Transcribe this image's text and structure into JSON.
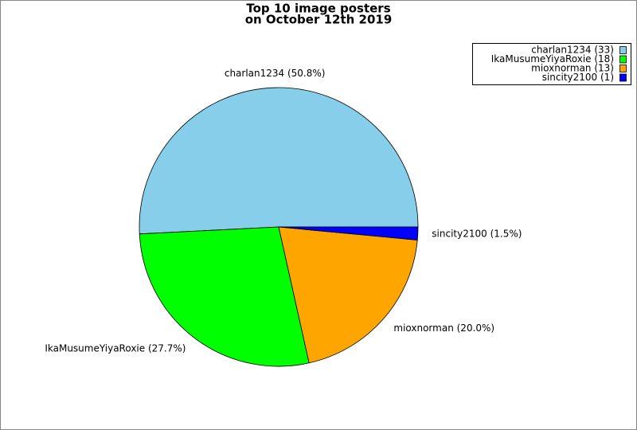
{
  "chart_data": {
    "type": "pie",
    "title": [
      "Top 10 image posters",
      "on October 12th 2019"
    ],
    "categories": [
      "charlan1234",
      "IkaMusumeYiyaRoxie",
      "mioxnorman",
      "sincity2100"
    ],
    "values": [
      50.8,
      27.7,
      20.0,
      1.5
    ],
    "value_labels": [
      "charlan1234 (50.8%)",
      "IkaMusumeYiyaRoxie (27.7%)",
      "mioxnorman (20.0%)",
      "sincity2100 (1.5%)"
    ],
    "legend_labels": [
      "charlan1234 (33)",
      "IkaMusumeYiyaRoxie (18)",
      "mioxnorman (13)",
      "sincity2100 (1)"
    ],
    "colors": [
      "#87ceeb",
      "#00ff00",
      "#ffa500",
      "#0000ff"
    ],
    "legend": "upper right"
  }
}
